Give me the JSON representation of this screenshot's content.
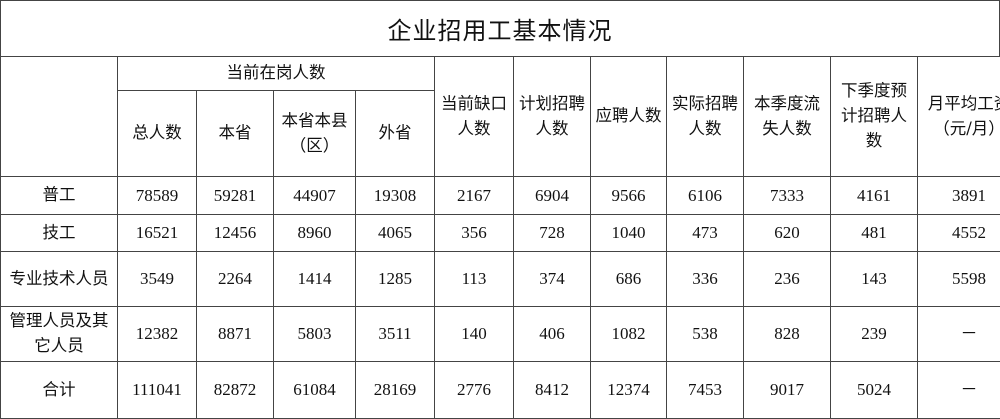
{
  "title": "企业招用工基本情况",
  "header": {
    "group_label": "当前在岗人数",
    "sub_cols": [
      "总人数",
      "本省",
      "本省本县（区）",
      "外省"
    ],
    "other_cols": [
      "当前缺口人数",
      "计划招聘人数",
      "应聘人数",
      "实际招聘人数",
      "本季度流失人数",
      "下季度预计招聘人数",
      "月平均工资（元/月）"
    ]
  },
  "rows": [
    {
      "label": "普工",
      "values": [
        "78589",
        "59281",
        "44907",
        "19308",
        "2167",
        "6904",
        "9566",
        "6106",
        "7333",
        "4161",
        "3891"
      ]
    },
    {
      "label": "技工",
      "values": [
        "16521",
        "12456",
        "8960",
        "4065",
        "356",
        "728",
        "1040",
        "473",
        "620",
        "481",
        "4552"
      ]
    },
    {
      "label": "专业技术人员",
      "values": [
        "3549",
        "2264",
        "1414",
        "1285",
        "113",
        "374",
        "686",
        "336",
        "236",
        "143",
        "5598"
      ]
    },
    {
      "label": "管理人员及其它人员",
      "values": [
        "12382",
        "8871",
        "5803",
        "3511",
        "140",
        "406",
        "1082",
        "538",
        "828",
        "239",
        "－"
      ]
    },
    {
      "label": "合计",
      "values": [
        "111041",
        "82872",
        "61084",
        "28169",
        "2776",
        "8412",
        "12374",
        "7453",
        "9017",
        "5024",
        "－"
      ]
    }
  ]
}
